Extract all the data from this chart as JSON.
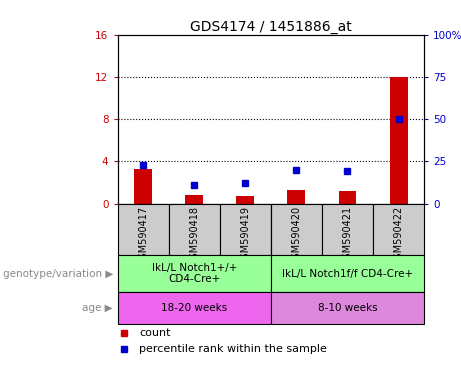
{
  "title": "GDS4174 / 1451886_at",
  "samples": [
    "GSM590417",
    "GSM590418",
    "GSM590419",
    "GSM590420",
    "GSM590421",
    "GSM590422"
  ],
  "counts": [
    3.3,
    0.8,
    0.7,
    1.3,
    1.2,
    12.0
  ],
  "percentiles": [
    23,
    11,
    12,
    20,
    19,
    50
  ],
  "ylim_left": [
    0,
    16
  ],
  "ylim_right": [
    0,
    100
  ],
  "yticks_left": [
    0,
    4,
    8,
    12,
    16
  ],
  "yticks_right": [
    0,
    25,
    50,
    75,
    100
  ],
  "ytick_labels_right": [
    "0",
    "25",
    "50",
    "75",
    "100%"
  ],
  "count_color": "#cc0000",
  "percentile_color": "#0000cc",
  "bar_width": 0.35,
  "genotype_groups": [
    {
      "label": "IkL/L Notch1+/+\nCD4-Cre+",
      "start": 0,
      "end": 2,
      "color": "#99ff99"
    },
    {
      "label": "IkL/L Notch1f/f CD4-Cre+",
      "start": 3,
      "end": 5,
      "color": "#99ff99"
    }
  ],
  "age_groups": [
    {
      "label": "18-20 weeks",
      "start": 0,
      "end": 2,
      "color": "#ee66ee"
    },
    {
      "label": "8-10 weeks",
      "start": 3,
      "end": 5,
      "color": "#dd88dd"
    }
  ],
  "xlabel_genotype": "genotype/variation",
  "xlabel_age": "age",
  "sample_bg_color": "#cccccc",
  "title_fontsize": 10,
  "tick_fontsize": 7.5,
  "annot_fontsize": 8,
  "legend_fontsize": 8
}
